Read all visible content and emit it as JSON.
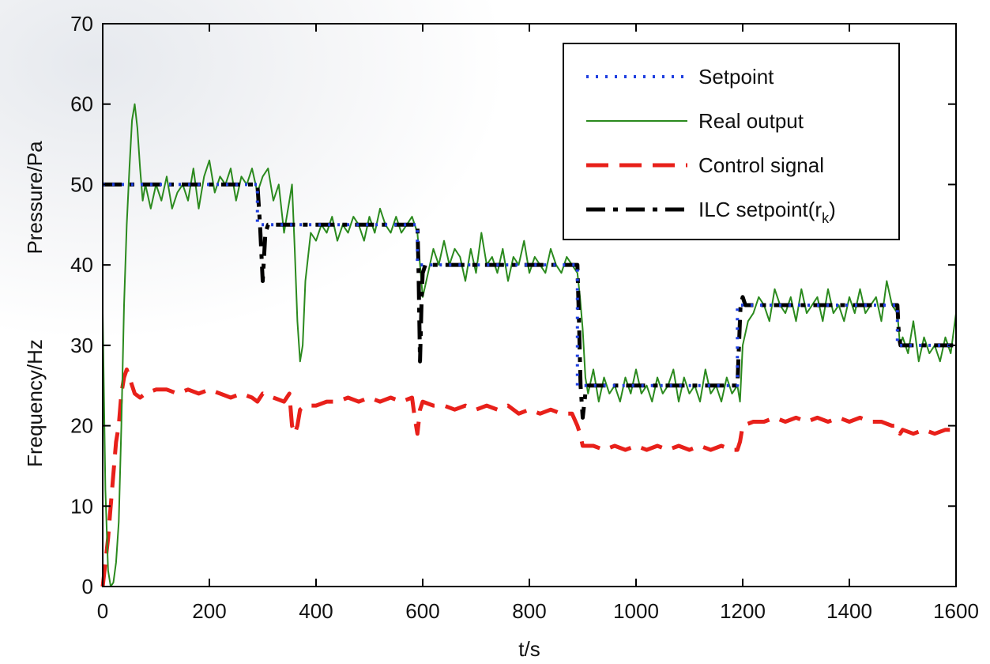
{
  "chart_data": {
    "type": "line",
    "xlabel": "t/s",
    "ylabel_top": "Pressure/Pa",
    "ylabel_bottom": "Frequency/Hz",
    "xlim": [
      0,
      1600
    ],
    "ylim": [
      0,
      70
    ],
    "xticks": [
      0,
      200,
      400,
      600,
      800,
      1000,
      1200,
      1400,
      1600
    ],
    "yticks": [
      0,
      10,
      20,
      30,
      40,
      50,
      60,
      70
    ],
    "grid": false,
    "legend_position": "top-right",
    "series": [
      {
        "name": "Setpoint",
        "color": "#1f3fe0",
        "style": "dotted",
        "x": [
          0,
          290,
          290,
          590,
          590,
          890,
          890,
          1190,
          1190,
          1490,
          1490,
          1600
        ],
        "y": [
          50,
          50,
          45,
          45,
          40,
          40,
          25,
          25,
          35,
          35,
          30,
          30
        ]
      },
      {
        "name": "Real output",
        "color": "#2b8a1e",
        "style": "solid",
        "x": [
          0,
          5,
          10,
          15,
          20,
          25,
          30,
          35,
          40,
          45,
          50,
          55,
          60,
          65,
          70,
          75,
          80,
          90,
          100,
          110,
          120,
          130,
          140,
          150,
          160,
          170,
          180,
          190,
          200,
          210,
          220,
          230,
          240,
          250,
          260,
          270,
          280,
          290,
          300,
          310,
          320,
          330,
          340,
          350,
          355,
          360,
          365,
          370,
          375,
          380,
          390,
          400,
          410,
          420,
          430,
          440,
          450,
          460,
          470,
          480,
          490,
          500,
          510,
          520,
          530,
          540,
          550,
          560,
          570,
          580,
          590,
          595,
          600,
          610,
          620,
          630,
          640,
          650,
          660,
          670,
          680,
          690,
          700,
          710,
          720,
          730,
          740,
          750,
          760,
          770,
          780,
          790,
          800,
          810,
          820,
          830,
          840,
          850,
          860,
          870,
          880,
          890,
          895,
          900,
          905,
          910,
          920,
          930,
          940,
          950,
          960,
          970,
          980,
          990,
          1000,
          1010,
          1020,
          1030,
          1040,
          1050,
          1060,
          1070,
          1080,
          1090,
          1100,
          1110,
          1120,
          1130,
          1140,
          1150,
          1160,
          1170,
          1180,
          1190,
          1195,
          1200,
          1210,
          1220,
          1230,
          1240,
          1250,
          1260,
          1270,
          1280,
          1290,
          1300,
          1310,
          1320,
          1330,
          1340,
          1350,
          1360,
          1370,
          1380,
          1390,
          1400,
          1410,
          1420,
          1430,
          1440,
          1450,
          1460,
          1470,
          1480,
          1490,
          1495,
          1500,
          1510,
          1520,
          1530,
          1540,
          1550,
          1560,
          1570,
          1580,
          1590,
          1600
        ],
        "y": [
          34,
          12,
          2,
          0,
          0.5,
          3,
          8,
          20,
          35,
          45,
          52,
          58,
          60,
          57,
          52,
          48,
          50,
          47,
          50,
          48,
          51,
          47,
          49,
          50,
          48,
          52,
          47,
          51,
          53,
          49,
          51,
          50,
          52,
          48,
          51,
          50,
          52,
          49,
          51,
          52,
          48,
          50,
          44,
          48,
          50,
          42,
          33,
          28,
          30,
          38,
          44,
          43,
          45,
          44,
          46,
          43,
          45,
          44,
          46,
          45,
          43,
          46,
          44,
          47,
          45,
          44,
          46,
          44,
          45,
          46,
          44,
          40,
          36,
          39,
          42,
          40,
          43,
          40,
          42,
          41,
          38,
          42,
          39,
          44,
          40,
          41,
          39,
          42,
          38,
          41,
          40,
          43,
          39,
          41,
          40,
          39,
          42,
          40,
          39,
          41,
          40,
          39,
          36,
          32,
          26,
          24,
          27,
          23,
          26,
          24,
          25,
          23,
          26,
          24,
          27,
          24,
          25,
          23,
          26,
          24,
          25,
          27,
          23,
          26,
          24,
          25,
          23,
          27,
          24,
          25,
          23,
          26,
          24,
          25,
          23,
          30,
          33,
          34,
          36,
          35,
          33,
          37,
          35,
          34,
          36,
          33,
          37,
          34,
          35,
          36,
          33,
          37,
          34,
          35,
          33,
          36,
          34,
          37,
          34,
          35,
          36,
          33,
          38,
          35,
          34,
          30,
          31,
          29,
          33,
          28,
          31,
          29,
          30,
          28,
          31,
          29,
          34
        ]
      },
      {
        "name": "Control signal",
        "color": "#e8201a",
        "style": "dashed",
        "x": [
          0,
          5,
          10,
          15,
          20,
          25,
          30,
          35,
          40,
          45,
          50,
          60,
          70,
          80,
          100,
          120,
          140,
          160,
          180,
          200,
          220,
          240,
          260,
          280,
          290,
          300,
          320,
          340,
          350,
          355,
          360,
          365,
          370,
          380,
          400,
          420,
          440,
          460,
          480,
          500,
          520,
          540,
          560,
          580,
          585,
          590,
          595,
          600,
          620,
          640,
          660,
          680,
          700,
          720,
          740,
          760,
          780,
          800,
          820,
          840,
          860,
          880,
          890,
          895,
          900,
          920,
          940,
          960,
          980,
          1000,
          1020,
          1040,
          1060,
          1080,
          1100,
          1120,
          1140,
          1160,
          1180,
          1190,
          1195,
          1200,
          1220,
          1240,
          1260,
          1280,
          1300,
          1320,
          1340,
          1360,
          1380,
          1400,
          1420,
          1440,
          1460,
          1480,
          1490,
          1495,
          1500,
          1520,
          1540,
          1560,
          1580,
          1600
        ],
        "y": [
          0,
          3,
          6,
          10,
          14,
          18,
          20,
          24,
          26,
          27,
          26,
          24,
          23.5,
          24,
          24.5,
          24.5,
          24,
          24.5,
          24,
          24.5,
          24,
          23.5,
          24,
          23.5,
          23,
          24,
          23.5,
          23,
          24,
          20,
          19,
          20,
          22,
          22.5,
          22.5,
          23,
          23,
          23.5,
          23,
          23.5,
          23,
          23.5,
          23,
          23.5,
          21,
          19,
          22,
          23,
          22.5,
          22.5,
          22,
          22.5,
          22,
          22.5,
          22,
          22.5,
          21.5,
          22,
          21.5,
          22,
          21.5,
          21.5,
          20,
          19,
          17.5,
          17.5,
          17,
          17.5,
          17,
          17.5,
          17,
          17.5,
          17,
          17.5,
          17,
          17.5,
          17,
          17.5,
          17,
          17,
          18,
          20,
          20.5,
          20.5,
          21,
          20.5,
          21,
          20.5,
          21,
          20.5,
          21,
          20.5,
          21,
          20.5,
          20.5,
          20,
          20,
          19,
          19.5,
          19,
          19.5,
          19,
          19.5,
          19.5
        ]
      },
      {
        "name": "ILC setpoint(r_k)",
        "color": "#000000",
        "style": "dashdot",
        "x": [
          0,
          290,
          295,
          300,
          305,
          310,
          315,
          590,
          592,
          595,
          598,
          600,
          605,
          610,
          890,
          893,
          896,
          900,
          905,
          910,
          915,
          1190,
          1193,
          1196,
          1200,
          1205,
          1210,
          1490,
          1493,
          1496,
          1500,
          1505,
          1600
        ],
        "y": [
          50,
          50,
          45,
          38,
          44,
          45,
          45,
          45,
          40,
          28,
          36,
          39,
          40,
          40,
          40,
          33,
          25,
          21,
          24,
          25,
          25,
          25,
          30,
          35,
          36,
          35,
          35,
          35,
          31,
          30,
          30,
          30,
          30
        ]
      }
    ]
  }
}
